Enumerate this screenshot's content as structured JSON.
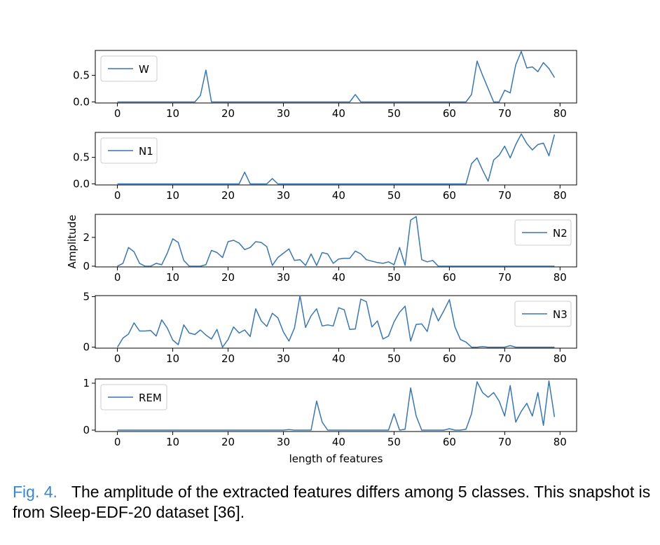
{
  "chart_data": {
    "type": "line",
    "xlabel": "length of features",
    "ylabel": "Amplitude",
    "line_color": "#3a76af",
    "x": [
      0,
      1,
      2,
      3,
      4,
      5,
      6,
      7,
      8,
      9,
      10,
      11,
      12,
      13,
      14,
      15,
      16,
      17,
      18,
      19,
      20,
      21,
      22,
      23,
      24,
      25,
      26,
      27,
      28,
      29,
      30,
      31,
      32,
      33,
      34,
      35,
      36,
      37,
      38,
      39,
      40,
      41,
      42,
      43,
      44,
      45,
      46,
      47,
      48,
      49,
      50,
      51,
      52,
      53,
      54,
      55,
      56,
      57,
      58,
      59,
      60,
      61,
      62,
      63,
      64,
      65,
      66,
      67,
      68,
      69,
      70,
      71,
      72,
      73,
      74,
      75,
      76,
      77,
      78,
      79
    ],
    "x_ticks": [
      "0",
      "10",
      "20",
      "30",
      "40",
      "50",
      "60",
      "70",
      "80"
    ],
    "xlim": [
      -4,
      83
    ],
    "panels": [
      {
        "name": "W",
        "legend_pos": "upper-left",
        "ylim": [
          -0.02,
          0.97
        ],
        "y_ticks": [
          0,
          0.5
        ],
        "y_tick_labels": [
          "0.0",
          "0.5"
        ],
        "values": [
          0,
          0,
          0,
          0,
          0,
          0,
          0,
          0,
          0,
          0,
          0,
          0,
          0,
          0,
          0,
          0.12,
          0.6,
          0,
          0,
          0,
          0,
          0,
          0,
          0,
          0,
          0,
          0,
          0,
          0,
          0,
          0,
          0,
          0,
          0,
          0,
          0,
          0,
          0,
          0,
          0,
          0,
          0,
          0,
          0.14,
          0,
          0,
          0,
          0,
          0,
          0,
          0,
          0,
          0,
          0,
          0,
          0,
          0,
          0,
          0,
          0,
          0,
          0,
          0,
          0,
          0.14,
          0.77,
          0.5,
          0.25,
          0,
          0,
          0.22,
          0.17,
          0.7,
          0.95,
          0.64,
          0.66,
          0.57,
          0.74,
          0.63,
          0.46
        ]
      },
      {
        "name": "N1",
        "legend_pos": "upper-left",
        "ylim": [
          -0.02,
          0.97
        ],
        "y_ticks": [
          0,
          0.5
        ],
        "y_tick_labels": [
          "0.0",
          "0.5"
        ],
        "values": [
          0,
          0,
          0,
          0,
          0,
          0,
          0,
          0,
          0,
          0,
          0,
          0,
          0,
          0,
          0,
          0,
          0,
          0,
          0,
          0,
          0,
          0,
          0,
          0.22,
          0,
          0,
          0,
          0,
          0.1,
          0,
          0,
          0,
          0,
          0,
          0,
          0,
          0,
          0,
          0,
          0,
          0,
          0,
          0,
          0,
          0,
          0,
          0,
          0,
          0,
          0,
          0,
          0,
          0,
          0,
          0,
          0,
          0,
          0,
          0,
          0,
          0,
          0,
          0,
          0,
          0.38,
          0.49,
          0.26,
          0.05,
          0.45,
          0.54,
          0.71,
          0.49,
          0.74,
          0.94,
          0.76,
          0.64,
          0.74,
          0.77,
          0.53,
          0.93
        ]
      },
      {
        "name": "N2",
        "legend_pos": "upper-right",
        "ylim": [
          -0.05,
          3.6
        ],
        "y_ticks": [
          0,
          2
        ],
        "y_tick_labels": [
          "0",
          "2"
        ],
        "values": [
          0,
          0.2,
          1.3,
          1.0,
          0.2,
          0,
          0,
          0.2,
          0.1,
          0.9,
          1.9,
          1.65,
          0.4,
          0,
          0,
          0,
          0.1,
          1.1,
          0.95,
          0.6,
          1.7,
          1.8,
          1.6,
          1.15,
          1.3,
          1.7,
          1.65,
          1.35,
          0.05,
          0.6,
          0.9,
          1.2,
          0.4,
          0.45,
          0.05,
          0.85,
          0.05,
          0.95,
          0.85,
          0.2,
          0.5,
          0.55,
          0.55,
          1.05,
          0.85,
          0.45,
          0.35,
          0.25,
          0.2,
          0.3,
          0.1,
          1.3,
          0.05,
          3.2,
          3.45,
          0.45,
          0.3,
          0.4,
          0,
          0,
          0,
          0,
          0,
          0,
          0,
          0,
          0,
          0,
          0,
          0,
          0,
          0,
          0,
          0,
          0,
          0,
          0,
          0,
          0,
          0
        ]
      },
      {
        "name": "N3",
        "legend_pos": "upper-right",
        "ylim": [
          -0.1,
          5.1
        ],
        "y_ticks": [
          0,
          5
        ],
        "y_tick_labels": [
          "0",
          "5"
        ],
        "values": [
          0,
          0.9,
          1.3,
          2.4,
          1.6,
          1.6,
          1.65,
          1.1,
          2.7,
          1.9,
          0.7,
          0.25,
          2.2,
          1.4,
          1.25,
          1.7,
          1.2,
          0.8,
          1.75,
          0,
          0.75,
          2.0,
          1.4,
          1.7,
          1.05,
          3.8,
          2.6,
          2.05,
          3.35,
          2.9,
          1.5,
          0.6,
          1.9,
          5.1,
          1.95,
          3.1,
          3.8,
          2.1,
          2.2,
          2.1,
          3.9,
          3.7,
          1.75,
          1.8,
          4.75,
          4.5,
          2.0,
          2.6,
          0.8,
          1.1,
          2.5,
          3.45,
          4.05,
          0.6,
          2.25,
          2.3,
          1.55,
          3.85,
          2.6,
          3.6,
          4.7,
          2.0,
          0.75,
          0.5,
          0,
          0,
          0.05,
          0,
          0,
          0,
          0,
          0.15,
          0,
          0,
          0,
          0,
          0,
          0,
          0,
          0
        ]
      },
      {
        "name": "REM",
        "legend_pos": "upper-left",
        "ylim": [
          -0.03,
          1.09
        ],
        "y_ticks": [
          0,
          1
        ],
        "y_tick_labels": [
          "0",
          "1"
        ],
        "values": [
          0,
          0,
          0,
          0,
          0,
          0,
          0,
          0,
          0,
          0,
          0,
          0,
          0,
          0,
          0,
          0,
          0,
          0,
          0,
          0,
          0,
          0,
          0,
          0,
          0,
          0,
          0,
          0,
          0,
          0,
          0,
          0.01,
          0,
          0,
          0,
          0,
          0.62,
          0.17,
          0,
          0,
          0,
          0,
          0,
          0,
          0,
          0,
          0,
          0,
          0,
          0,
          0.35,
          0,
          0.02,
          0.9,
          0.3,
          0,
          0,
          0,
          0,
          0,
          0.03,
          0,
          0,
          0.02,
          0.35,
          1.03,
          0.8,
          0.7,
          0.8,
          0.62,
          0.3,
          0.95,
          0.17,
          0.4,
          0.57,
          0.3,
          0.8,
          0.1,
          1.05,
          0.28
        ]
      }
    ]
  },
  "caption": {
    "label": "Fig. 4.",
    "text": "The amplitude of the extracted features differs among 5 classes. This snapshot is from Sleep-EDF-20 dataset [36]."
  }
}
